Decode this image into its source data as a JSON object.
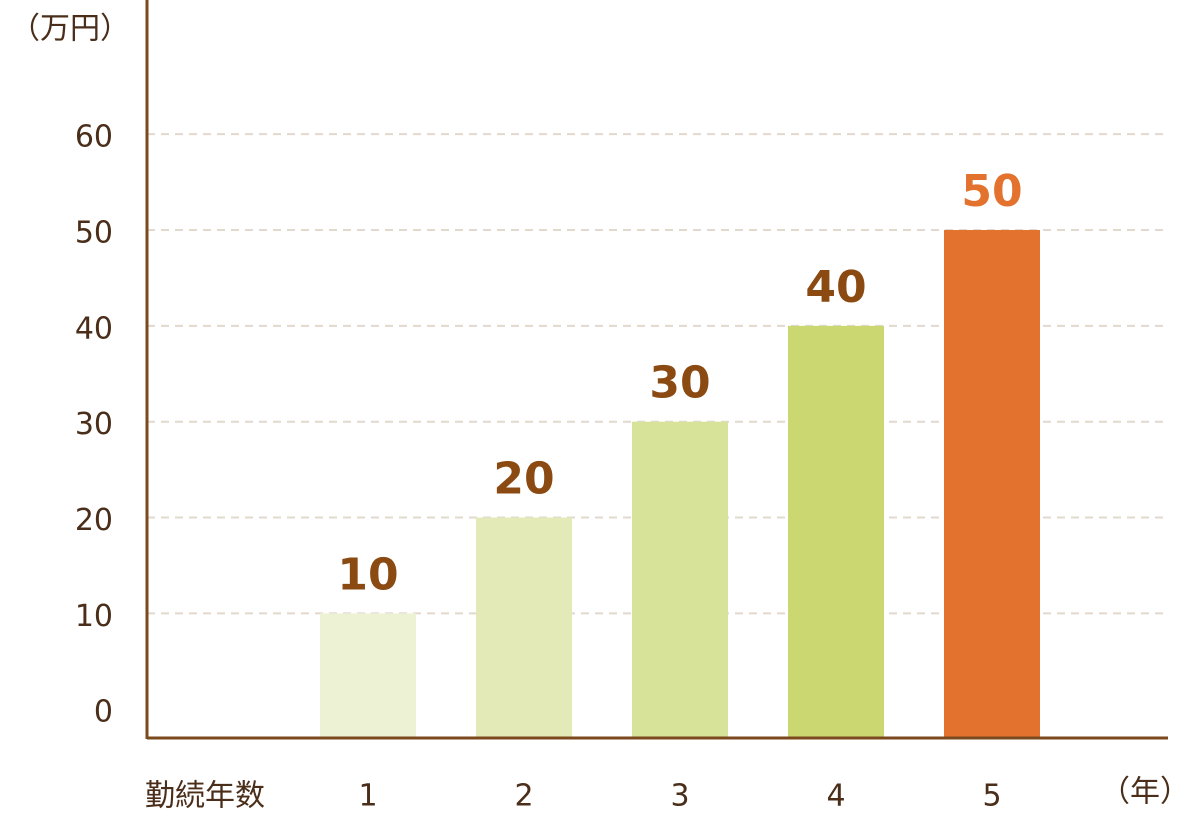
{
  "chart_data": {
    "type": "bar",
    "y_unit": "（万円）",
    "x_label": "勤続年数",
    "x_unit": "（年）",
    "categories": [
      "1",
      "2",
      "3",
      "4",
      "5"
    ],
    "values": [
      10,
      20,
      30,
      40,
      50
    ],
    "colors": [
      "#eef2d4",
      "#e3eab7",
      "#d8e39a",
      "#cbd872",
      "#e2722e"
    ],
    "label_colors": [
      "#8b4a12",
      "#8b4a12",
      "#8b4a12",
      "#8b4a12",
      "#e2722e"
    ],
    "ylim": [
      -3,
      74
    ],
    "yticks": [
      0,
      10,
      20,
      30,
      40,
      50,
      60
    ],
    "grid": true
  }
}
